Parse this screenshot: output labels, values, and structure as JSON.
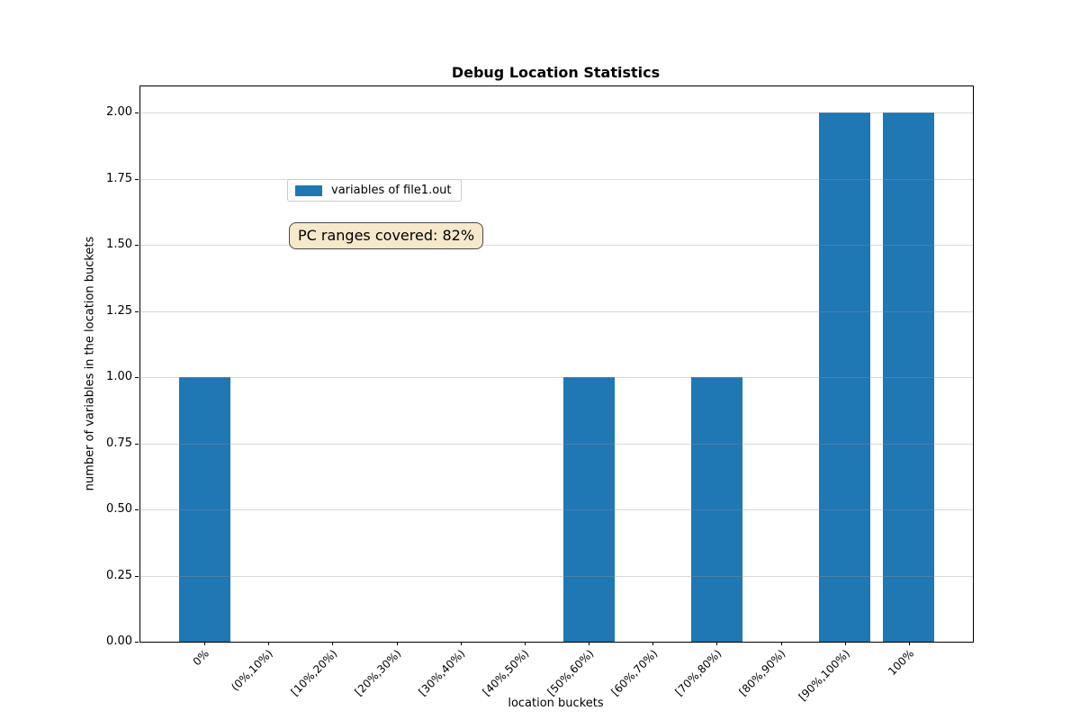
{
  "title": "Debug Location Statistics",
  "legend": {
    "label": "variables of file1.out",
    "swatch_color": "#1f77b4"
  },
  "annotation": {
    "text": "PC ranges covered: 82%",
    "bg_color": "#f6e8cb",
    "border_color": "#4a4a4a"
  },
  "chart_data": {
    "type": "bar",
    "title": "Debug Location Statistics",
    "xlabel": "location buckets",
    "ylabel": "number of variables in the location buckets",
    "categories": [
      "0%",
      "(0%,10%)",
      "[10%,20%)",
      "[20%,30%)",
      "[30%,40%)",
      "[40%,50%)",
      "[50%,60%)",
      "[60%,70%)",
      "[70%,80%)",
      "[80%,90%)",
      "[90%,100%)",
      "100%"
    ],
    "series": [
      {
        "name": "variables of file1.out",
        "values": [
          1,
          0,
          0,
          0,
          0,
          0,
          1,
          0,
          1,
          0,
          2,
          2
        ]
      }
    ],
    "bar_color": "#1f77b4",
    "ylim": [
      0,
      2.1
    ],
    "yticks": [
      0,
      0.25,
      0.5,
      0.75,
      1.0,
      1.25,
      1.5,
      1.75,
      2.0
    ],
    "ytick_label_format": "2-decimals",
    "grid": "horizontal",
    "grid_over_bars": true,
    "legend_position": "upper left",
    "x_tick_rotation_deg": 45
  }
}
